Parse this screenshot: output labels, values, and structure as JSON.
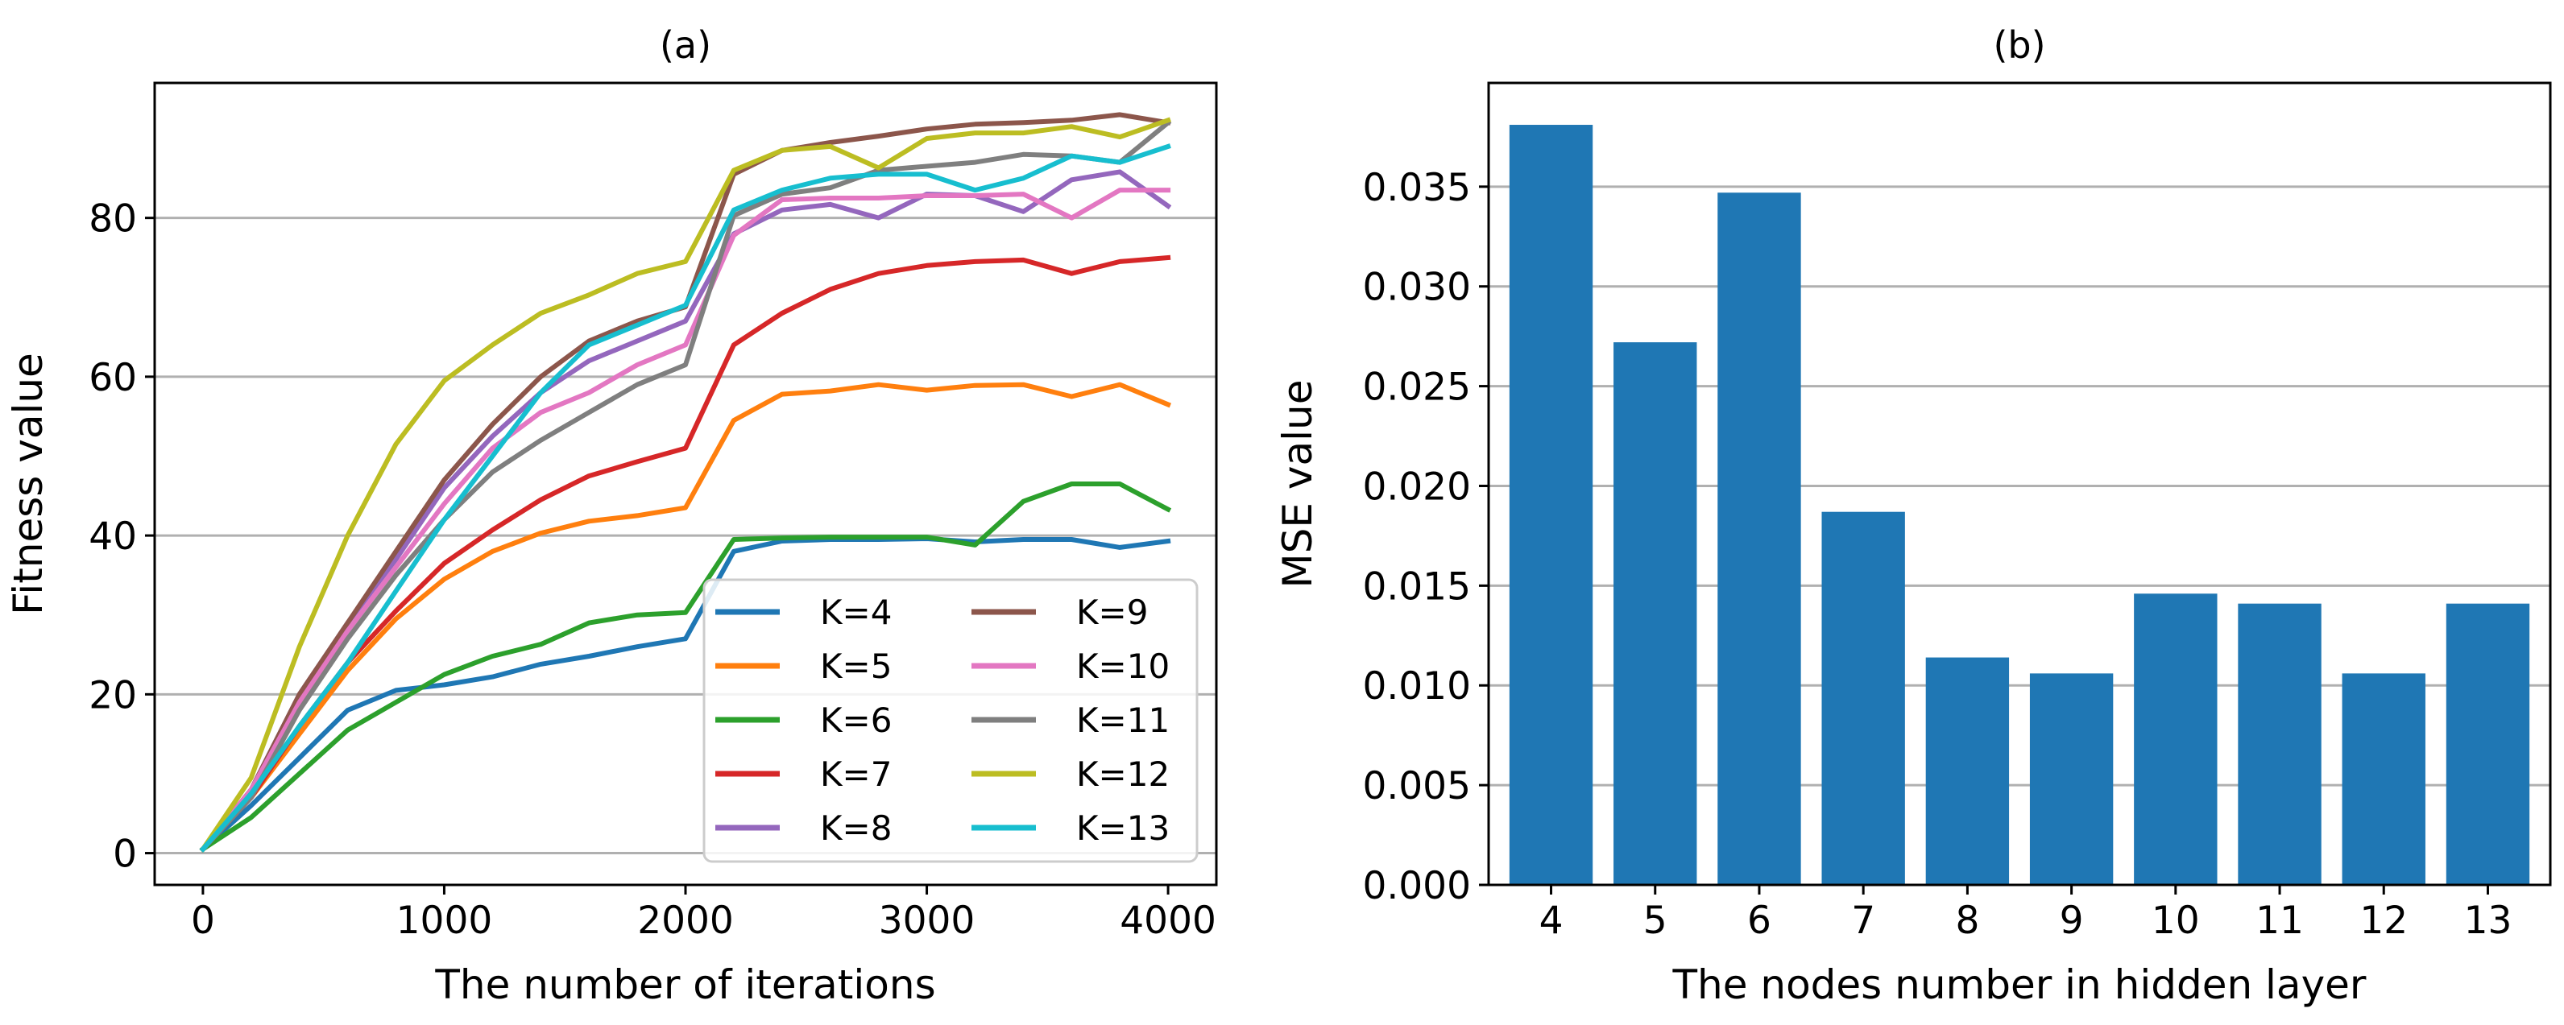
{
  "chart_data": [
    {
      "id": "a",
      "type": "line",
      "title": "(a)",
      "xlabel": "The number of iterations",
      "ylabel": "Fitness value",
      "xlim": [
        -200,
        4200
      ],
      "ylim": [
        -4,
        97
      ],
      "xticks": [
        0,
        1000,
        2000,
        3000,
        4000
      ],
      "xtick_labels": [
        "0",
        "1000",
        "2000",
        "3000",
        "4000"
      ],
      "yticks": [
        0,
        20,
        40,
        60,
        80
      ],
      "ytick_labels": [
        "0",
        "20",
        "40",
        "60",
        "80"
      ],
      "grid": "y",
      "legend": "lower-right",
      "x": [
        0,
        200,
        400,
        600,
        800,
        1000,
        1200,
        1400,
        1600,
        1800,
        2000,
        2200,
        2400,
        2600,
        2800,
        3000,
        3200,
        3400,
        3600,
        3800,
        4000
      ],
      "series": [
        {
          "name": "K=4",
          "color": "#1f77b4",
          "values": [
            0.5,
            6,
            12,
            18,
            20.5,
            21.2,
            22.2,
            23.8,
            24.8,
            26,
            27,
            38,
            39.3,
            39.5,
            39.5,
            39.6,
            39.2,
            39.5,
            39.5,
            38.5,
            39.3
          ]
        },
        {
          "name": "K=5",
          "color": "#ff7f0e",
          "values": [
            0.5,
            7,
            15,
            23,
            29.5,
            34.5,
            38,
            40.3,
            41.8,
            42.5,
            43.5,
            54.5,
            57.8,
            58.2,
            59,
            58.3,
            58.9,
            59,
            57.5,
            59,
            56.5
          ]
        },
        {
          "name": "K=6",
          "color": "#2ca02c",
          "values": [
            0.5,
            4.5,
            10,
            15.5,
            19,
            22.5,
            24.8,
            26.3,
            29,
            30,
            30.3,
            39.5,
            39.7,
            39.8,
            39.8,
            39.8,
            38.8,
            44.3,
            46.5,
            46.5,
            43.3
          ]
        },
        {
          "name": "K=7",
          "color": "#d62728",
          "values": [
            0.5,
            7,
            16,
            24,
            30.5,
            36.5,
            40.7,
            44.5,
            47.5,
            49.3,
            51,
            64,
            68,
            71,
            73,
            74,
            74.5,
            74.7,
            73,
            74.5,
            75
          ]
        },
        {
          "name": "K=8",
          "color": "#9467bd",
          "values": [
            0.5,
            8,
            20,
            29,
            37,
            46,
            52.5,
            58,
            62,
            64.5,
            67,
            78,
            81,
            81.7,
            80,
            83,
            82.8,
            80.8,
            84.8,
            85.8,
            81.5
          ]
        },
        {
          "name": "K=9",
          "color": "#8c564b",
          "values": [
            0.5,
            8,
            20,
            29,
            38,
            47,
            54,
            60,
            64.5,
            67,
            68.8,
            85.5,
            88.5,
            89.5,
            90.3,
            91.2,
            91.8,
            92,
            92.3,
            93,
            92
          ]
        },
        {
          "name": "K=10",
          "color": "#e377c2",
          "values": [
            0.5,
            8,
            19,
            28,
            36,
            44,
            51,
            55.5,
            58,
            61.5,
            64,
            77.8,
            82.3,
            82.5,
            82.5,
            82.8,
            82.8,
            83,
            80,
            83.5,
            83.5
          ]
        },
        {
          "name": "K=11",
          "color": "#7f7f7f",
          "values": [
            0.5,
            7,
            18,
            27,
            35,
            42,
            48,
            52,
            55.5,
            59,
            61.5,
            80.3,
            83,
            83.8,
            86,
            86.5,
            87,
            88,
            87.8,
            87,
            92
          ]
        },
        {
          "name": "K=12",
          "color": "#bcbd22",
          "values": [
            0.5,
            9.5,
            26,
            40,
            51.5,
            59.5,
            64,
            68,
            70.3,
            73,
            74.5,
            86,
            88.5,
            89,
            86.3,
            90,
            90.7,
            90.7,
            91.5,
            90.2,
            92.3
          ]
        },
        {
          "name": "K=13",
          "color": "#17becf",
          "values": [
            0.5,
            7.5,
            16,
            24,
            33,
            42,
            50,
            58,
            64,
            66.5,
            69,
            81,
            83.5,
            85,
            85.5,
            85.5,
            83.5,
            85,
            87.8,
            87,
            89
          ]
        }
      ]
    },
    {
      "id": "b",
      "type": "bar",
      "title": "(b)",
      "xlabel": "The nodes number in hidden layer",
      "ylabel": "MSE value",
      "categories": [
        "4",
        "5",
        "6",
        "7",
        "8",
        "9",
        "10",
        "11",
        "12",
        "13"
      ],
      "values": [
        0.0381,
        0.0272,
        0.0347,
        0.0187,
        0.0114,
        0.0106,
        0.0146,
        0.0141,
        0.0106,
        0.0141
      ],
      "color": "#1f77b4",
      "ylim": [
        0,
        0.0402
      ],
      "yticks": [
        0.0,
        0.005,
        0.01,
        0.015,
        0.02,
        0.025,
        0.03,
        0.035
      ],
      "ytick_labels": [
        "0.000",
        "0.005",
        "0.010",
        "0.015",
        "0.020",
        "0.025",
        "0.030",
        "0.035"
      ],
      "grid": "y"
    }
  ]
}
